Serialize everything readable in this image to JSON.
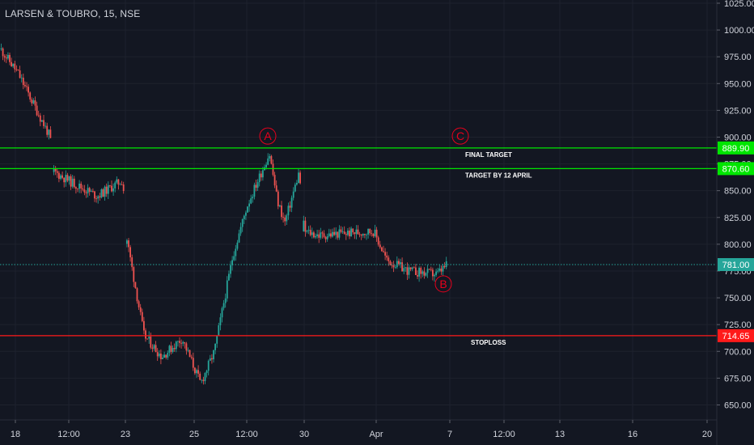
{
  "chart_data": {
    "type": "candlestick",
    "title": "LARSEN & TOUBRO, 15, NSE",
    "ylim": [
      636,
      1028
    ],
    "y_ticks": [
      650,
      675,
      700,
      725,
      750,
      775,
      800,
      825,
      850,
      875,
      900,
      925,
      950,
      975,
      1000,
      1025
    ],
    "y_tick_labels": [
      "650.00",
      "675.00",
      "700.00",
      "725.00",
      "750.00",
      "775.00",
      "800.00",
      "825.00",
      "850.00",
      "875.00",
      "900.00",
      "925.00",
      "950.00",
      "975.00",
      "1000.00",
      "1025.00"
    ],
    "x_tick_labels": [
      "18",
      "12:00",
      "23",
      "25",
      "12:00",
      "30",
      "Apr",
      "7",
      "12:00",
      "13",
      "16",
      "20"
    ],
    "price_path": [
      {
        "label": "18",
        "price": 983
      },
      {
        "label": "19",
        "price": 960
      },
      {
        "label": "20",
        "price": 900
      },
      {
        "label": "20",
        "price": 868
      },
      {
        "label": "12:00",
        "price": 858
      },
      {
        "label": "22",
        "price": 845
      },
      {
        "label": "23",
        "price": 860
      },
      {
        "label": "23",
        "price": 808
      },
      {
        "label": "24",
        "price": 715
      },
      {
        "label": "24",
        "price": 695
      },
      {
        "label": "25",
        "price": 712
      },
      {
        "label": "25",
        "price": 670
      },
      {
        "label": "26",
        "price": 700
      },
      {
        "label": "12:00",
        "price": 790
      },
      {
        "label": "27",
        "price": 835
      },
      {
        "label": "27",
        "price": 885
      },
      {
        "label": "28",
        "price": 840
      },
      {
        "label": "28",
        "price": 820
      },
      {
        "label": "29",
        "price": 868
      },
      {
        "label": "30",
        "price": 812
      },
      {
        "label": "31",
        "price": 808
      },
      {
        "label": "Apr",
        "price": 810
      },
      {
        "label": "Apr",
        "price": 812
      },
      {
        "label": "2",
        "price": 785
      },
      {
        "label": "3",
        "price": 775
      },
      {
        "label": "6",
        "price": 772
      },
      {
        "label": "7",
        "price": 781
      }
    ],
    "last_price": 781.0,
    "last_price_label": "781.00",
    "levels": [
      {
        "price": 889.9,
        "label": "889.90",
        "text": "FINAL TARGET",
        "color": "#00e600"
      },
      {
        "price": 870.6,
        "label": "870.60",
        "text": "TARGET BY 12 APRIL",
        "color": "#00e600"
      },
      {
        "price": 714.65,
        "label": "714.65",
        "text": "STOPLOSS",
        "color": "#ff1a1a"
      }
    ],
    "wave_labels": [
      {
        "text": "A",
        "at": "27",
        "price": 901
      },
      {
        "text": "B",
        "at": "7",
        "price": 763
      },
      {
        "text": "C",
        "at": "7",
        "price": 901
      }
    ],
    "colors": {
      "background": "#131722",
      "up": "#26a69a",
      "down": "#ef5350",
      "grid": "#1e222d",
      "text": "#d1d4dc",
      "last_price": "#26a69a"
    }
  }
}
